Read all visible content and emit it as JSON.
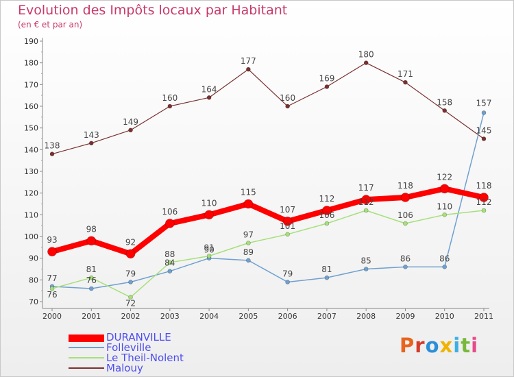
{
  "title": "Evolution des Impôts locaux par Habitant",
  "subtitle": "(en € et par an)",
  "logo": "Proxiti",
  "chart_data": {
    "type": "line",
    "x": [
      "2000",
      "2001",
      "2002",
      "2003",
      "2004",
      "2005",
      "2006",
      "2007",
      "2008",
      "2009",
      "2010",
      "2011"
    ],
    "ylim": [
      70,
      190
    ],
    "yticks": [
      70,
      80,
      90,
      100,
      110,
      120,
      130,
      140,
      150,
      160,
      170,
      180,
      190
    ],
    "grid": false,
    "legend_position": "bottom-left",
    "series": [
      {
        "name": "DURANVILLE",
        "color": "#ff0000",
        "values": [
          93,
          98,
          92,
          106,
          110,
          115,
          107,
          112,
          117,
          118,
          122,
          118
        ],
        "labels": [
          "93",
          "98",
          "92",
          "106",
          "110",
          "115",
          "107",
          "112",
          "117",
          "118",
          "122",
          "118"
        ]
      },
      {
        "name": "Folleville",
        "color": "#6fa0d0",
        "values": [
          77,
          76,
          79,
          84,
          90,
          89,
          79,
          81,
          85,
          86,
          86,
          157
        ],
        "labels": [
          "77",
          "76",
          "79",
          "84",
          "90",
          "89",
          "79",
          "81",
          "85",
          "86",
          "86",
          "157"
        ]
      },
      {
        "name": "Le Theil-Nolent",
        "color": "#a6e07a",
        "values": [
          76,
          81,
          72,
          88,
          91,
          97,
          101,
          106,
          112,
          106,
          110,
          112
        ],
        "labels": [
          "76",
          "81",
          "72",
          "88",
          "91",
          "97",
          "101",
          "106",
          "112",
          "106",
          "110",
          "112"
        ]
      },
      {
        "name": "Malouy",
        "color": "#7a3030",
        "values": [
          138,
          143,
          149,
          160,
          164,
          177,
          160,
          169,
          180,
          171,
          158,
          145
        ],
        "labels": [
          "138",
          "143",
          "149",
          "160",
          "164",
          "177",
          "160",
          "169",
          "180",
          "171",
          "158",
          "145"
        ]
      }
    ]
  }
}
